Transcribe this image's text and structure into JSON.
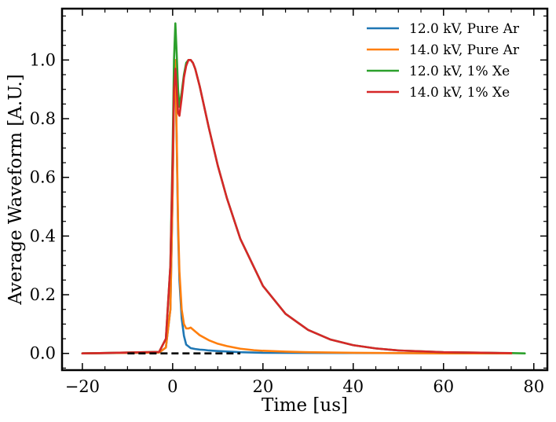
{
  "chart_data": {
    "type": "line",
    "title": "",
    "xlabel": "Time [us]",
    "ylabel": "Average Waveform [A.U.]",
    "xlim": [
      -24.5,
      83
    ],
    "ylim": [
      -0.057,
      1.175
    ],
    "xticks": [
      -20,
      0,
      20,
      40,
      60,
      80
    ],
    "xtick_labels": [
      "−20",
      "0",
      "20",
      "40",
      "60",
      "80"
    ],
    "yticks": [
      0.0,
      0.2,
      0.4,
      0.6,
      0.8,
      1.0
    ],
    "ytick_labels": [
      "0.0",
      "0.2",
      "0.4",
      "0.6",
      "0.8",
      "1.0"
    ],
    "grid": false,
    "legend_position": "top-right",
    "baseline": {
      "style": "dashed",
      "color": "#000000",
      "x": [
        -10,
        15
      ],
      "y": [
        0,
        0
      ]
    },
    "series": [
      {
        "name": "12.0 kV, Pure Ar",
        "color": "#1f77b4",
        "x": [
          -20,
          -3,
          -1.5,
          -0.5,
          0,
          0.3,
          0.6,
          0.9,
          1.2,
          1.5,
          2,
          2.5,
          3,
          4,
          5,
          6,
          7,
          8,
          10,
          15,
          20,
          75
        ],
        "y": [
          0,
          0.003,
          0.02,
          0.15,
          0.55,
          0.88,
          0.97,
          0.72,
          0.42,
          0.25,
          0.12,
          0.06,
          0.03,
          0.018,
          0.015,
          0.013,
          0.012,
          0.01,
          0.008,
          0.004,
          0.002,
          0
        ]
      },
      {
        "name": "14.0 kV, Pure Ar",
        "color": "#ff7f0e",
        "x": [
          -20,
          -3,
          -1.5,
          -0.5,
          0,
          0.3,
          0.6,
          0.9,
          1.2,
          1.5,
          2,
          2.5,
          3,
          3.5,
          4,
          5,
          6,
          8,
          10,
          12,
          15,
          18,
          20,
          25,
          30,
          40,
          50,
          60,
          75
        ],
        "y": [
          0,
          0.003,
          0.02,
          0.15,
          0.55,
          0.88,
          1.0,
          0.74,
          0.45,
          0.28,
          0.15,
          0.1,
          0.085,
          0.085,
          0.088,
          0.075,
          0.062,
          0.045,
          0.033,
          0.025,
          0.016,
          0.011,
          0.009,
          0.006,
          0.004,
          0.002,
          0.001,
          0,
          0
        ]
      },
      {
        "name": "12.0 kV, 1% Xe",
        "color": "#2ca02c",
        "x": [
          -20,
          -3,
          -1.5,
          -0.5,
          0,
          0.3,
          0.6,
          0.9,
          1.2,
          1.5,
          2,
          2.5,
          3,
          3.5,
          4,
          4.5,
          5,
          6,
          8,
          10,
          12,
          15,
          20,
          25,
          30,
          35,
          40,
          45,
          50,
          55,
          60,
          65,
          70,
          75,
          78
        ],
        "y": [
          0,
          0.005,
          0.05,
          0.3,
          0.7,
          1.0,
          1.125,
          1.02,
          0.9,
          0.84,
          0.89,
          0.95,
          0.99,
          1.0,
          1.0,
          0.99,
          0.97,
          0.91,
          0.77,
          0.64,
          0.53,
          0.39,
          0.23,
          0.135,
          0.08,
          0.047,
          0.028,
          0.017,
          0.01,
          0.007,
          0.004,
          0.003,
          0.002,
          0.001,
          0
        ]
      },
      {
        "name": "14.0 kV, 1% Xe",
        "color": "#d62728",
        "x": [
          -20,
          -3,
          -1.5,
          -0.5,
          0,
          0.3,
          0.6,
          0.9,
          1.2,
          1.5,
          2,
          2.5,
          3,
          3.5,
          4,
          4.5,
          5,
          6,
          8,
          10,
          12,
          15,
          20,
          25,
          30,
          35,
          40,
          45,
          50,
          55,
          60,
          65,
          70,
          75
        ],
        "y": [
          0,
          0.005,
          0.05,
          0.3,
          0.65,
          0.9,
          0.97,
          0.9,
          0.82,
          0.81,
          0.87,
          0.94,
          0.98,
          1.0,
          1.0,
          0.99,
          0.97,
          0.91,
          0.77,
          0.64,
          0.53,
          0.39,
          0.23,
          0.135,
          0.08,
          0.047,
          0.028,
          0.017,
          0.01,
          0.007,
          0.004,
          0.003,
          0.002,
          0.001
        ]
      }
    ]
  }
}
